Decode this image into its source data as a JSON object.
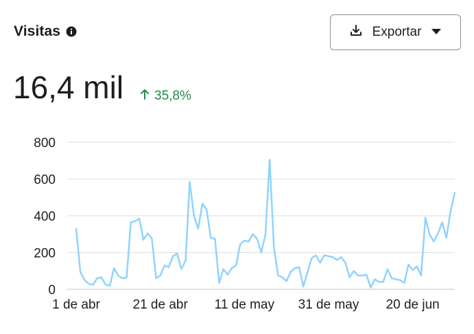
{
  "header": {
    "title": "Visitas",
    "info_icon": "info-icon",
    "export_label": "Exportar",
    "export_icon": "download-icon",
    "dropdown_icon": "caret-down-icon"
  },
  "summary": {
    "value": "16,4 mil",
    "delta_icon": "arrow-up-icon",
    "delta": "35,8%",
    "delta_color": "#1f8b4c"
  },
  "chart_data": {
    "type": "line",
    "title": "",
    "xlabel": "",
    "ylabel": "",
    "ylim": [
      0,
      800
    ],
    "y_ticks": [
      0,
      200,
      400,
      600,
      800
    ],
    "x_ticks": [
      {
        "label": "1 de abr",
        "index": 0
      },
      {
        "label": "21 de abr",
        "index": 20
      },
      {
        "label": "11 de may",
        "index": 40
      },
      {
        "label": "31 de may",
        "index": 60
      },
      {
        "label": "20 de jun",
        "index": 80
      }
    ],
    "grid": true,
    "line_color": "#8fd3ff",
    "series": [
      {
        "values": [
          330,
          95,
          50,
          30,
          25,
          60,
          65,
          25,
          20,
          115,
          75,
          60,
          65,
          365,
          370,
          385,
          270,
          305,
          275,
          60,
          75,
          130,
          120,
          180,
          195,
          110,
          155,
          585,
          400,
          330,
          465,
          435,
          280,
          275,
          35,
          110,
          80,
          115,
          130,
          245,
          265,
          260,
          300,
          275,
          200,
          300,
          705,
          230,
          75,
          65,
          45,
          95,
          115,
          120,
          15,
          95,
          170,
          185,
          145,
          185,
          180,
          175,
          160,
          175,
          145,
          65,
          100,
          75,
          75,
          80,
          10,
          55,
          40,
          40,
          110,
          60,
          55,
          50,
          35,
          135,
          105,
          125,
          75,
          390,
          300,
          260,
          305,
          365,
          280,
          425,
          525
        ]
      }
    ]
  }
}
